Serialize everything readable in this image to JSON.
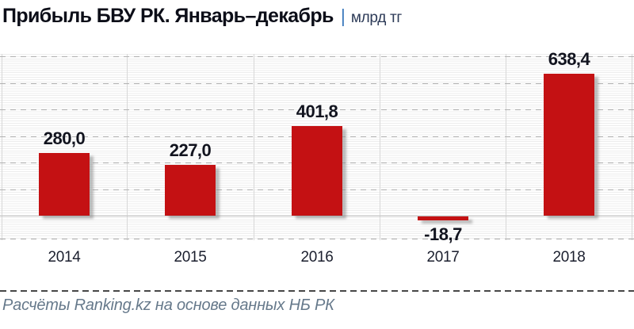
{
  "header": {
    "title": "Прибыль БВУ РК. Январь–декабрь",
    "separator": "|",
    "unit": "млрд тг"
  },
  "chart_data": {
    "type": "bar",
    "title": "Прибыль БВУ РК. Январь–декабрь",
    "unit": "млрд тг",
    "categories": [
      "2014",
      "2015",
      "2016",
      "2017",
      "2018"
    ],
    "values": [
      280.0,
      227.0,
      401.8,
      -18.7,
      638.4
    ],
    "value_labels": [
      "280,0",
      "227,0",
      "401,8",
      "-18,7",
      "638,4"
    ],
    "bar_color": "#c41113",
    "ylim": [
      -100,
      700
    ],
    "grid": "horizontal dashed major gridlines, fine minor lines, vertical category separators",
    "legend": "none",
    "yaxis_tick_labels": "none"
  },
  "footer": {
    "source": "Расчёты Ranking.kz на основе данных НБ РК"
  }
}
